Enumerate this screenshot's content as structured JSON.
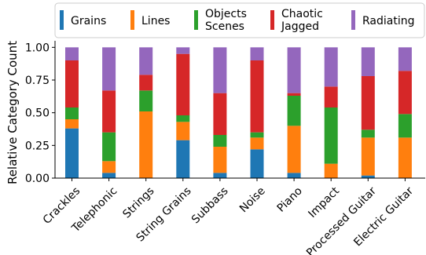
{
  "chart_data": {
    "type": "bar",
    "stacked": true,
    "title": "",
    "xlabel": "",
    "ylabel": "Relative Category Count",
    "ylim": [
      0,
      1.05
    ],
    "yticks": [
      "0.00",
      "0.25",
      "0.50",
      "0.75",
      "1.00"
    ],
    "ytick_values": [
      0,
      0.25,
      0.5,
      0.75,
      1.0
    ],
    "grid": false,
    "legend_position": "top",
    "categories": [
      "Crackles",
      "Telephonic",
      "Strings",
      "String Grains",
      "Subbass",
      "Noise",
      "Piano",
      "Impact",
      "Processed Guitar",
      "Electric Guitar"
    ],
    "series": [
      {
        "name": "Grains",
        "color": "#1f77b4",
        "values": [
          0.38,
          0.04,
          0.0,
          0.29,
          0.04,
          0.22,
          0.04,
          0.0,
          0.02,
          0.0
        ]
      },
      {
        "name": "Lines",
        "color": "#ff7f0e",
        "values": [
          0.07,
          0.09,
          0.51,
          0.14,
          0.2,
          0.09,
          0.36,
          0.11,
          0.29,
          0.31
        ]
      },
      {
        "name": "Objects\nScenes",
        "color": "#2ca02c",
        "values": [
          0.09,
          0.22,
          0.16,
          0.05,
          0.09,
          0.04,
          0.23,
          0.43,
          0.06,
          0.18
        ]
      },
      {
        "name": "Chaotic\nJagged",
        "color": "#d62728",
        "values": [
          0.36,
          0.32,
          0.12,
          0.47,
          0.32,
          0.55,
          0.02,
          0.16,
          0.41,
          0.33
        ]
      },
      {
        "name": "Radiating",
        "color": "#9467bd",
        "values": [
          0.1,
          0.33,
          0.21,
          0.05,
          0.35,
          0.1,
          0.35,
          0.3,
          0.22,
          0.18
        ]
      }
    ]
  }
}
